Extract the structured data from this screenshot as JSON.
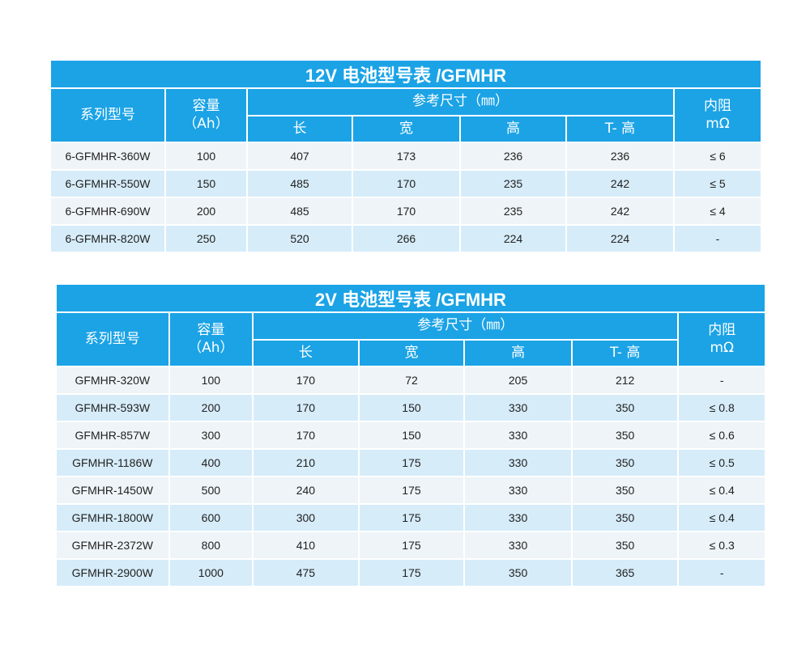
{
  "table_12v": {
    "title": "12V 电池型号表 /GFMHR",
    "header": {
      "model": "系列型号",
      "capacity_line1": "容量",
      "capacity_line2": "（Ah）",
      "dims": "参考尺寸（㎜）",
      "length": "长",
      "width": "宽",
      "height": "高",
      "t_height": "T- 高",
      "resistance_line1": "内阻",
      "resistance_line2": "mΩ"
    },
    "rows": [
      [
        "6-GFMHR-360W",
        "100",
        "407",
        "173",
        "236",
        "236",
        "≤ 6"
      ],
      [
        "6-GFMHR-550W",
        "150",
        "485",
        "170",
        "235",
        "242",
        "≤ 5"
      ],
      [
        "6-GFMHR-690W",
        "200",
        "485",
        "170",
        "235",
        "242",
        "≤ 4"
      ],
      [
        "6-GFMHR-820W",
        "250",
        "520",
        "266",
        "224",
        "224",
        "-"
      ]
    ]
  },
  "table_2v": {
    "title": "2V 电池型号表 /GFMHR",
    "header": {
      "model": "系列型号",
      "capacity_line1": "容量",
      "capacity_line2": "（Ah）",
      "dims": "参考尺寸（㎜）",
      "length": "长",
      "width": "宽",
      "height": "高",
      "t_height": "T- 高",
      "resistance_line1": "内阻",
      "resistance_line2": "mΩ"
    },
    "rows": [
      [
        "GFMHR-320W",
        "100",
        "170",
        "72",
        "205",
        "212",
        "-"
      ],
      [
        "GFMHR-593W",
        "200",
        "170",
        "150",
        "330",
        "350",
        "≤ 0.8"
      ],
      [
        "GFMHR-857W",
        "300",
        "170",
        "150",
        "330",
        "350",
        "≤ 0.6"
      ],
      [
        "GFMHR-1186W",
        "400",
        "210",
        "175",
        "330",
        "350",
        "≤ 0.5"
      ],
      [
        "GFMHR-1450W",
        "500",
        "240",
        "175",
        "330",
        "350",
        "≤ 0.4"
      ],
      [
        "GFMHR-1800W",
        "600",
        "300",
        "175",
        "330",
        "350",
        "≤ 0.4"
      ],
      [
        "GFMHR-2372W",
        "800",
        "410",
        "175",
        "330",
        "350",
        "≤ 0.3"
      ],
      [
        "GFMHR-2900W",
        "1000",
        "475",
        "175",
        "350",
        "365",
        "-"
      ]
    ]
  },
  "colors": {
    "header_blue": "#1ba3e6",
    "row_light": "#eef4f8",
    "row_blue": "#d6ecf9"
  }
}
